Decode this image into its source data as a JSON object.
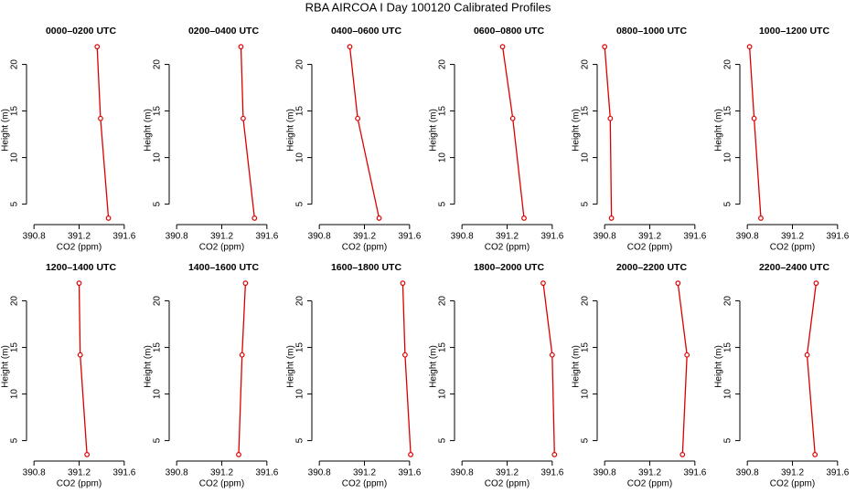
{
  "title": "RBA AIRCOA I  Day 100120  Calibrated Profiles",
  "chart_data": [
    {
      "type": "line",
      "title": "0000–0200 UTC",
      "xlabel": "CO2 (ppm)",
      "ylabel": "Height (m)",
      "color": "#dd0000",
      "x": [
        391.36,
        391.39,
        391.46
      ],
      "values": [
        21.9,
        14.2,
        3.5
      ],
      "xlim": [
        390.75,
        391.65
      ],
      "xticks": [
        390.8,
        391.2,
        391.6
      ],
      "ylim": [
        3.1,
        22.8
      ],
      "yticks": [
        5,
        10,
        15,
        20
      ]
    },
    {
      "type": "line",
      "title": "0200–0400 UTC",
      "xlabel": "CO2 (ppm)",
      "ylabel": "Height (m)",
      "color": "#dd0000",
      "x": [
        391.37,
        391.39,
        391.49
      ],
      "values": [
        21.9,
        14.2,
        3.5
      ],
      "xlim": [
        390.75,
        391.65
      ],
      "xticks": [
        390.8,
        391.2,
        391.6
      ],
      "ylim": [
        3.1,
        22.8
      ],
      "yticks": [
        5,
        10,
        15,
        20
      ]
    },
    {
      "type": "line",
      "title": "0400–0600 UTC",
      "xlabel": "CO2 (ppm)",
      "ylabel": "Height (m)",
      "color": "#dd0000",
      "x": [
        391.07,
        391.14,
        391.33
      ],
      "values": [
        21.9,
        14.2,
        3.5
      ],
      "xlim": [
        390.75,
        391.65
      ],
      "xticks": [
        390.8,
        391.2,
        391.6
      ],
      "ylim": [
        3.1,
        22.8
      ],
      "yticks": [
        5,
        10,
        15,
        20
      ]
    },
    {
      "type": "line",
      "title": "0600–0800 UTC",
      "xlabel": "CO2 (ppm)",
      "ylabel": "Height (m)",
      "color": "#dd0000",
      "x": [
        391.16,
        391.25,
        391.35
      ],
      "values": [
        21.9,
        14.2,
        3.5
      ],
      "xlim": [
        390.75,
        391.65
      ],
      "xticks": [
        390.8,
        391.2,
        391.6
      ],
      "ylim": [
        3.1,
        22.8
      ],
      "yticks": [
        5,
        10,
        15,
        20
      ]
    },
    {
      "type": "line",
      "title": "0800–1000 UTC",
      "xlabel": "CO2 (ppm)",
      "ylabel": "Height (m)",
      "color": "#dd0000",
      "x": [
        390.8,
        390.85,
        390.86
      ],
      "values": [
        21.9,
        14.2,
        3.5
      ],
      "xlim": [
        390.75,
        391.65
      ],
      "xticks": [
        390.8,
        391.2,
        391.6
      ],
      "ylim": [
        3.1,
        22.8
      ],
      "yticks": [
        5,
        10,
        15,
        20
      ]
    },
    {
      "type": "line",
      "title": "1000–1200 UTC",
      "xlabel": "CO2 (ppm)",
      "ylabel": "Height (m)",
      "color": "#dd0000",
      "x": [
        390.82,
        390.86,
        390.92
      ],
      "values": [
        21.9,
        14.2,
        3.5
      ],
      "xlim": [
        390.75,
        391.65
      ],
      "xticks": [
        390.8,
        391.2,
        391.6
      ],
      "ylim": [
        3.1,
        22.8
      ],
      "yticks": [
        5,
        10,
        15,
        20
      ]
    },
    {
      "type": "line",
      "title": "1200–1400 UTC",
      "xlabel": "CO2 (ppm)",
      "ylabel": "Height (m)",
      "color": "#dd0000",
      "x": [
        391.2,
        391.21,
        391.27
      ],
      "values": [
        21.9,
        14.2,
        3.5
      ],
      "xlim": [
        390.75,
        391.65
      ],
      "xticks": [
        390.8,
        391.2,
        391.6
      ],
      "ylim": [
        3.1,
        22.8
      ],
      "yticks": [
        5,
        10,
        15,
        20
      ]
    },
    {
      "type": "line",
      "title": "1400–1600 UTC",
      "xlabel": "CO2 (ppm)",
      "ylabel": "Height (m)",
      "color": "#dd0000",
      "x": [
        391.41,
        391.38,
        391.35
      ],
      "values": [
        21.9,
        14.2,
        3.5
      ],
      "xlim": [
        390.75,
        391.65
      ],
      "xticks": [
        390.8,
        391.2,
        391.6
      ],
      "ylim": [
        3.1,
        22.8
      ],
      "yticks": [
        5,
        10,
        15,
        20
      ]
    },
    {
      "type": "line",
      "title": "1600–1800 UTC",
      "xlabel": "CO2 (ppm)",
      "ylabel": "Height (m)",
      "color": "#dd0000",
      "x": [
        391.54,
        391.56,
        391.61
      ],
      "values": [
        21.9,
        14.2,
        3.5
      ],
      "xlim": [
        390.75,
        391.65
      ],
      "xticks": [
        390.8,
        391.2,
        391.6
      ],
      "ylim": [
        3.1,
        22.8
      ],
      "yticks": [
        5,
        10,
        15,
        20
      ]
    },
    {
      "type": "line",
      "title": "1800–2000 UTC",
      "xlabel": "CO2 (ppm)",
      "ylabel": "Height (m)",
      "color": "#dd0000",
      "x": [
        391.52,
        391.6,
        391.62
      ],
      "values": [
        21.9,
        14.2,
        3.5
      ],
      "xlim": [
        390.75,
        391.65
      ],
      "xticks": [
        390.8,
        391.2,
        391.6
      ],
      "ylim": [
        3.1,
        22.8
      ],
      "yticks": [
        5,
        10,
        15,
        20
      ]
    },
    {
      "type": "line",
      "title": "2000–2200 UTC",
      "xlabel": "CO2 (ppm)",
      "ylabel": "Height (m)",
      "color": "#dd0000",
      "x": [
        391.45,
        391.53,
        391.49
      ],
      "values": [
        21.9,
        14.2,
        3.5
      ],
      "xlim": [
        390.75,
        391.65
      ],
      "xticks": [
        390.8,
        391.2,
        391.6
      ],
      "ylim": [
        3.1,
        22.8
      ],
      "yticks": [
        5,
        10,
        15,
        20
      ]
    },
    {
      "type": "line",
      "title": "2200–2400 UTC",
      "xlabel": "CO2 (ppm)",
      "ylabel": "Height (m)",
      "color": "#dd0000",
      "x": [
        391.41,
        391.33,
        391.4
      ],
      "values": [
        21.9,
        14.2,
        3.5
      ],
      "xlim": [
        390.75,
        391.65
      ],
      "xticks": [
        390.8,
        391.2,
        391.6
      ],
      "ylim": [
        3.1,
        22.8
      ],
      "yticks": [
        5,
        10,
        15,
        20
      ]
    }
  ]
}
